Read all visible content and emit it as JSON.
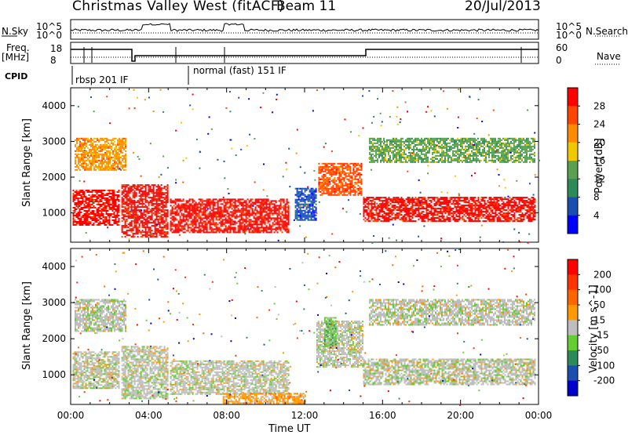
{
  "header": {
    "station": "Christmas Valley West (fitACF)",
    "beam": "Beam 11",
    "date": "20/Jul/2013"
  },
  "strip": {
    "nsky_label": "N.Sky",
    "nsky_ticks": [
      "10^5",
      "10^0"
    ],
    "nsearch_label": "N.Search",
    "nsearch_ticks": [
      "10^5",
      "10^0"
    ],
    "freq_label": "Freq.",
    "freq_unit": "[MHz]",
    "freq_ticks": [
      "18",
      "8"
    ],
    "nave_label": "Nave",
    "nave_ticks": [
      "60",
      "0"
    ],
    "cpid_label": "CPID",
    "cpid_modes": [
      "rbsp 201 IF",
      "normal (fast) 151 IF"
    ]
  },
  "colors": {
    "power": [
      "#0000ff",
      "#1a4fb0",
      "#2e8b57",
      "#5aa050",
      "#f0c800",
      "#ff8c00",
      "#ff4500",
      "#ff0000"
    ],
    "velocity": [
      "#0000cc",
      "#1a4fb0",
      "#2e8b57",
      "#66cc33",
      "#bebebe",
      "#ff9900",
      "#ff6600",
      "#ff3300",
      "#ff0000"
    ]
  },
  "chart_data": [
    {
      "type": "heatmap",
      "name": "power",
      "ylabel": "Slant Range [km]",
      "yticks": [
        1000,
        2000,
        3000,
        4000
      ],
      "ylim": [
        180,
        4500
      ],
      "xlim": [
        0,
        24
      ],
      "xticks": [
        "00:00",
        "04:00",
        "08:00",
        "12:00",
        "16:00",
        "20:00",
        "00:00"
      ],
      "colorbar": {
        "label": "Power [dB]",
        "ticks": [
          4,
          8,
          12,
          16,
          20,
          24,
          28
        ],
        "range": [
          0,
          32
        ]
      },
      "bands": [
        {
          "t0": 0.1,
          "t1": 2.5,
          "r0": 650,
          "r1": 1650,
          "level": 7
        },
        {
          "t0": 2.6,
          "t1": 5.0,
          "r0": 350,
          "r1": 1800,
          "level": 7
        },
        {
          "t0": 5.1,
          "t1": 11.2,
          "r0": 450,
          "r1": 1400,
          "level": 7
        },
        {
          "t0": 11.5,
          "t1": 12.6,
          "r0": 800,
          "r1": 1700,
          "level": 1
        },
        {
          "t0": 12.7,
          "t1": 14.9,
          "r0": 1500,
          "r1": 2400,
          "level": 6
        },
        {
          "t0": 15.0,
          "t1": 23.8,
          "r0": 750,
          "r1": 1450,
          "level": 7
        },
        {
          "t0": 0.2,
          "t1": 2.8,
          "r0": 2200,
          "r1": 3100,
          "level": 5
        },
        {
          "t0": 15.3,
          "t1": 23.8,
          "r0": 2400,
          "r1": 3100,
          "level": 3
        }
      ]
    },
    {
      "type": "heatmap",
      "name": "velocity",
      "ylabel": "Slant Range [km]",
      "yticks": [
        1000,
        2000,
        3000,
        4000
      ],
      "ylim": [
        180,
        4500
      ],
      "xlim": [
        0,
        24
      ],
      "xticks": [
        "00:00",
        "04:00",
        "08:00",
        "12:00",
        "16:00",
        "20:00",
        "00:00"
      ],
      "xlabel": "Time UT",
      "colorbar": {
        "label": "Velocity [m s^-1]",
        "ticks": [
          200,
          100,
          50,
          15,
          -15,
          -50,
          -100,
          -200
        ]
      },
      "bands": [
        {
          "t0": 0.1,
          "t1": 2.5,
          "r0": 650,
          "r1": 1650,
          "level": 4
        },
        {
          "t0": 2.6,
          "t1": 5.0,
          "r0": 350,
          "r1": 1800,
          "level": 4
        },
        {
          "t0": 5.1,
          "t1": 11.2,
          "r0": 450,
          "r1": 1400,
          "level": 4
        },
        {
          "t0": 12.6,
          "t1": 15.0,
          "r0": 1200,
          "r1": 2500,
          "level": 4
        },
        {
          "t0": 15.0,
          "t1": 23.8,
          "r0": 750,
          "r1": 1450,
          "level": 4
        },
        {
          "t0": 13.0,
          "t1": 13.6,
          "r0": 1800,
          "r1": 2600,
          "level": 3
        },
        {
          "t0": 7.8,
          "t1": 12.0,
          "r0": 220,
          "r1": 500,
          "level": 5
        },
        {
          "t0": 0.2,
          "t1": 2.8,
          "r0": 2200,
          "r1": 3100,
          "level": 4
        },
        {
          "t0": 15.3,
          "t1": 23.8,
          "r0": 2400,
          "r1": 3100,
          "level": 4
        }
      ]
    }
  ]
}
